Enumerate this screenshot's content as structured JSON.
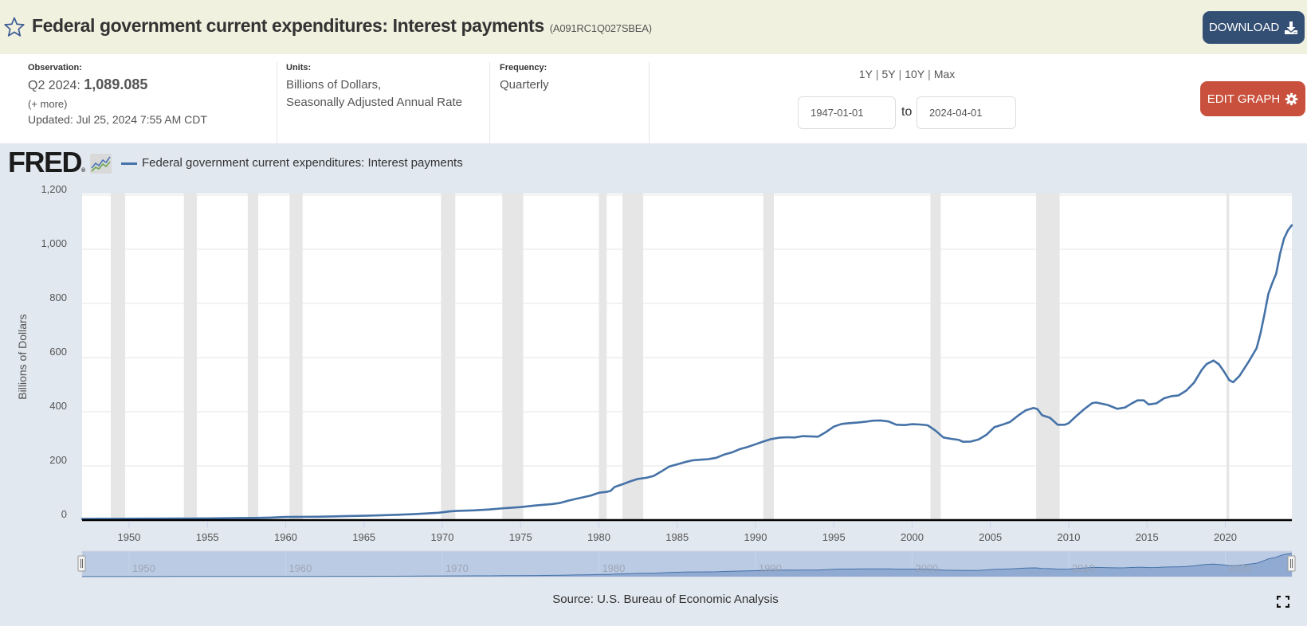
{
  "header": {
    "title": "Federal government current expenditures: Interest payments",
    "series_id": "(A091RC1Q027SBEA)",
    "star_icon": "star-outline-icon",
    "download_label": "DOWNLOAD",
    "download_icon": "download-icon"
  },
  "info": {
    "observation": {
      "label": "Observation:",
      "period": "Q2 2024:",
      "value": "1,089.085",
      "more": "(+ more)",
      "updated": "Updated: Jul 25, 2024 7:55 AM CDT"
    },
    "units": {
      "label": "Units:",
      "line1": "Billions of Dollars,",
      "line2": "Seasonally Adjusted Annual Rate"
    },
    "frequency": {
      "label": "Frequency:",
      "value": "Quarterly"
    },
    "range_links": [
      "1Y",
      "5Y",
      "10Y",
      "Max"
    ],
    "range_separator": "|",
    "date_range": {
      "start": "1947-01-01",
      "to_label": "to",
      "end": "2024-04-01"
    },
    "edit_graph_label": "EDIT GRAPH",
    "edit_graph_icon": "gear-icon"
  },
  "graph": {
    "logo": "FRED",
    "logo_mark": "®",
    "legend": "Federal government current expenditures: Interest payments",
    "source": "Source: U.S. Bureau of Economic Analysis",
    "fullscreen_icon": "fullscreen-icon"
  },
  "colors": {
    "header_bg": "#f1f1e0",
    "chart_bg": "#e1e8f0",
    "download_button": "#344f74",
    "edit_button": "#c8503c",
    "series_line": "#4572a7",
    "recession_shade": "#e6e6e6",
    "navigator_fill": "#bccbe4",
    "navigator_area": "#8aa4cf"
  },
  "chart_data": {
    "type": "line",
    "title": "Federal government current expenditures: Interest payments",
    "xlabel": "",
    "ylabel": "Billions of Dollars",
    "ylim": [
      0,
      1200
    ],
    "yticks": [
      0,
      200,
      400,
      600,
      800,
      1000,
      1200
    ],
    "ytick_labels": [
      "0",
      "200",
      "400",
      "600",
      "800",
      "1,000",
      "1,200"
    ],
    "xlim": [
      1947.0,
      2024.25
    ],
    "xticks": [
      1950,
      1955,
      1960,
      1965,
      1970,
      1975,
      1980,
      1985,
      1990,
      1995,
      2000,
      2005,
      2010,
      2015,
      2020
    ],
    "grid": "horizontal",
    "legend_position": "top-left",
    "navigator_labels": [
      1950,
      1960,
      1970,
      1980,
      1990,
      2000,
      2010,
      2020
    ],
    "recession_shading_years": [
      [
        1948.83,
        1949.75
      ],
      [
        1953.5,
        1954.33
      ],
      [
        1957.58,
        1958.25
      ],
      [
        1960.25,
        1961.08
      ],
      [
        1969.92,
        1970.83
      ],
      [
        1973.83,
        1975.17
      ],
      [
        1980.0,
        1980.5
      ],
      [
        1981.5,
        1982.83
      ],
      [
        1990.5,
        1991.17
      ],
      [
        2001.17,
        2001.83
      ],
      [
        2007.92,
        2009.42
      ],
      [
        2020.08,
        2020.25
      ]
    ],
    "series": [
      {
        "name": "Federal government current expenditures: Interest payments",
        "color": "#4572a7",
        "x": [
          1947.0,
          1948.0,
          1949.0,
          1950.0,
          1951.0,
          1952.0,
          1953.0,
          1954.0,
          1955.0,
          1956.0,
          1957.0,
          1958.0,
          1959.0,
          1960.0,
          1961.0,
          1962.0,
          1963.0,
          1964.0,
          1965.0,
          1966.0,
          1967.0,
          1968.0,
          1969.0,
          1969.75,
          1970.5,
          1971.0,
          1972.0,
          1973.0,
          1974.0,
          1975.0,
          1976.0,
          1977.0,
          1977.5,
          1978.0,
          1978.5,
          1979.0,
          1979.5,
          1980.0,
          1980.5,
          1980.75,
          1981.0,
          1981.5,
          1982.0,
          1982.5,
          1983.0,
          1983.5,
          1984.0,
          1984.5,
          1985.0,
          1985.5,
          1986.0,
          1986.5,
          1987.0,
          1987.5,
          1988.0,
          1988.5,
          1989.0,
          1989.5,
          1990.0,
          1990.5,
          1991.0,
          1991.5,
          1992.0,
          1992.5,
          1993.0,
          1993.5,
          1994.0,
          1994.5,
          1995.0,
          1995.5,
          1996.0,
          1996.5,
          1997.0,
          1997.5,
          1998.0,
          1998.5,
          1999.0,
          1999.5,
          2000.0,
          2000.5,
          2001.0,
          2001.5,
          2002.0,
          2002.5,
          2003.0,
          2003.25,
          2003.75,
          2004.25,
          2004.75,
          2005.25,
          2005.75,
          2006.25,
          2006.75,
          2007.25,
          2007.75,
          2008.0,
          2008.3,
          2008.8,
          2009.3,
          2009.75,
          2010.0,
          2010.5,
          2011.0,
          2011.5,
          2011.75,
          2012.5,
          2013.1,
          2013.6,
          2014.0,
          2014.4,
          2014.8,
          2015.1,
          2015.6,
          2016.1,
          2016.6,
          2017.0,
          2017.5,
          2018.0,
          2018.5,
          2018.8,
          2019.25,
          2019.6,
          2019.9,
          2020.25,
          2020.5,
          2020.9,
          2021.25,
          2021.5,
          2022.0,
          2022.25,
          2022.5,
          2022.75,
          2023.0,
          2023.25,
          2023.5,
          2023.75,
          2024.0,
          2024.25
        ],
        "values": [
          4.4,
          4.6,
          4.8,
          5.0,
          5.2,
          5.4,
          5.8,
          6.0,
          6.3,
          6.8,
          7.5,
          8.0,
          9.0,
          11.5,
          12.0,
          12.5,
          13.5,
          15.0,
          16.0,
          17.5,
          19.5,
          21.5,
          24.5,
          27,
          32,
          34,
          36,
          39,
          44,
          48,
          54,
          59,
          63,
          71,
          78,
          84,
          91,
          101,
          104,
          108,
          122,
          132,
          143,
          152,
          156,
          163,
          180,
          198,
          206,
          214,
          221,
          223,
          225,
          230,
          242,
          250,
          262,
          270,
          280,
          290,
          299,
          304,
          306,
          305,
          310,
          309,
          308,
          325,
          345,
          355,
          358,
          360,
          363,
          367,
          368,
          364,
          352,
          351,
          354,
          353,
          350,
          330,
          305,
          300,
          296,
          289,
          290,
          298,
          315,
          343,
          352,
          362,
          385,
          405,
          414,
          410,
          387,
          378,
          352,
          352,
          358,
          385,
          410,
          432,
          434,
          425,
          411,
          416,
          430,
          442,
          442,
          427,
          431,
          450,
          458,
          460,
          478,
          507,
          555,
          576,
          589,
          575,
          550,
          517,
          509,
          532,
          563,
          586,
          635,
          690,
          760,
          835,
          875,
          910,
          985,
          1040,
          1070,
          1089.085
        ]
      }
    ]
  }
}
